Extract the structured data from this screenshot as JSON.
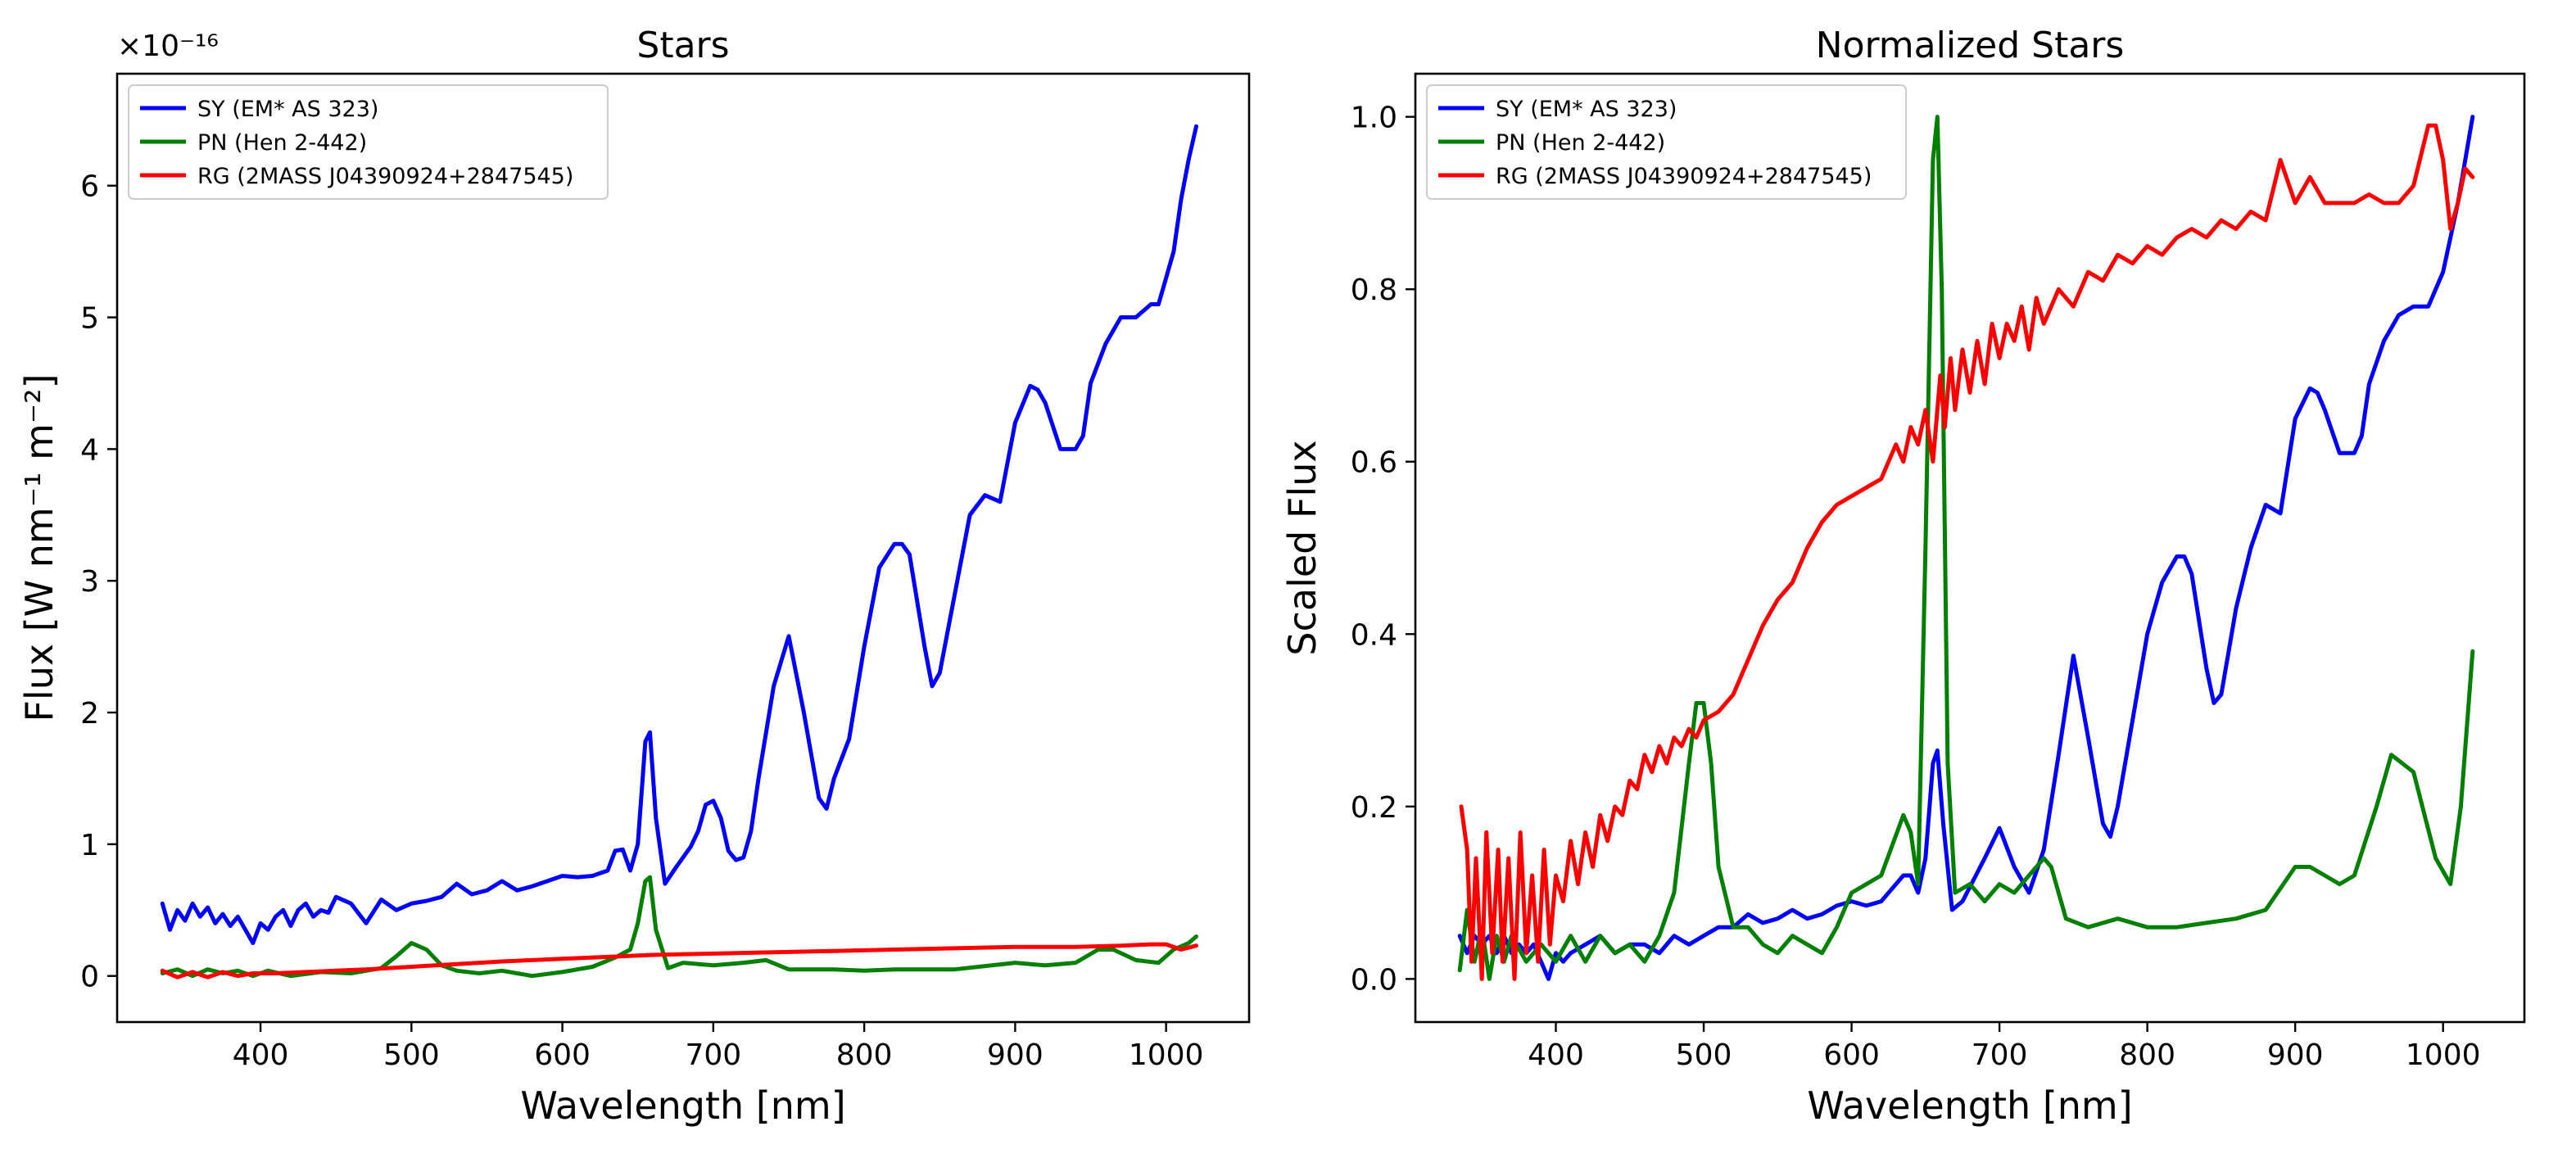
{
  "chart_data": [
    {
      "type": "line",
      "title": "Stars",
      "xlabel": "Wavelength [nm]",
      "ylabel": "Flux [W nm⁻¹ m⁻²]",
      "y_offset_label": "×10⁻¹⁶",
      "xlim": [
        305,
        1055
      ],
      "ylim": [
        -0.35,
        6.85
      ],
      "xticks": [
        400,
        500,
        600,
        700,
        800,
        900,
        1000
      ],
      "xtick_labels": [
        "400",
        "500",
        "600",
        "700",
        "800",
        "900",
        "1000"
      ],
      "yticks": [
        0,
        1,
        2,
        3,
        4,
        5,
        6
      ],
      "ytick_labels": [
        "0",
        "1",
        "2",
        "3",
        "4",
        "5",
        "6"
      ],
      "legend_position": "top-left",
      "series": [
        {
          "name": "SY (EM* AS 323)",
          "color": "#0000ff",
          "x": [
            335,
            340,
            345,
            350,
            355,
            360,
            365,
            370,
            375,
            380,
            385,
            390,
            395,
            400,
            405,
            410,
            415,
            420,
            425,
            430,
            435,
            440,
            445,
            450,
            460,
            470,
            480,
            490,
            500,
            510,
            520,
            530,
            540,
            550,
            560,
            570,
            580,
            590,
            600,
            610,
            620,
            630,
            635,
            640,
            645,
            650,
            655,
            658,
            662,
            668,
            675,
            685,
            690,
            695,
            700,
            705,
            710,
            715,
            720,
            725,
            730,
            740,
            750,
            760,
            770,
            775,
            780,
            790,
            800,
            810,
            820,
            825,
            830,
            840,
            845,
            850,
            860,
            870,
            880,
            890,
            900,
            910,
            915,
            920,
            930,
            940,
            945,
            950,
            960,
            970,
            980,
            990,
            995,
            1000,
            1005,
            1010,
            1015,
            1020
          ],
          "values": [
            0.55,
            0.35,
            0.5,
            0.42,
            0.55,
            0.45,
            0.52,
            0.4,
            0.47,
            0.38,
            0.45,
            0.35,
            0.25,
            0.4,
            0.35,
            0.45,
            0.5,
            0.38,
            0.5,
            0.55,
            0.45,
            0.5,
            0.48,
            0.6,
            0.55,
            0.4,
            0.58,
            0.5,
            0.55,
            0.57,
            0.6,
            0.7,
            0.62,
            0.65,
            0.72,
            0.65,
            0.68,
            0.72,
            0.76,
            0.75,
            0.76,
            0.8,
            0.95,
            0.96,
            0.8,
            1.0,
            1.78,
            1.85,
            1.2,
            0.7,
            0.82,
            0.98,
            1.1,
            1.3,
            1.33,
            1.2,
            0.95,
            0.88,
            0.9,
            1.1,
            1.5,
            2.2,
            2.58,
            2.0,
            1.35,
            1.27,
            1.5,
            1.8,
            2.5,
            3.1,
            3.28,
            3.28,
            3.2,
            2.5,
            2.2,
            2.3,
            2.9,
            3.5,
            3.65,
            3.6,
            4.2,
            4.48,
            4.45,
            4.35,
            4.0,
            4.0,
            4.1,
            4.5,
            4.8,
            5.0,
            5.0,
            5.1,
            5.1,
            5.3,
            5.5,
            5.9,
            6.2,
            6.45
          ]
        },
        {
          "name": "PN (Hen 2-442)",
          "color": "#008000",
          "x": [
            335,
            345,
            355,
            365,
            375,
            385,
            395,
            405,
            420,
            440,
            460,
            470,
            480,
            490,
            500,
            510,
            520,
            530,
            545,
            560,
            580,
            600,
            620,
            635,
            645,
            650,
            655,
            658,
            662,
            670,
            680,
            700,
            720,
            735,
            750,
            780,
            800,
            820,
            860,
            900,
            920,
            940,
            955,
            965,
            980,
            995,
            1005,
            1015,
            1020
          ],
          "values": [
            0.02,
            0.05,
            0.0,
            0.05,
            0.02,
            0.04,
            0.0,
            0.04,
            0.0,
            0.03,
            0.02,
            0.04,
            0.06,
            0.15,
            0.25,
            0.2,
            0.08,
            0.04,
            0.02,
            0.04,
            0.0,
            0.03,
            0.07,
            0.14,
            0.2,
            0.4,
            0.72,
            0.75,
            0.35,
            0.06,
            0.1,
            0.08,
            0.1,
            0.12,
            0.05,
            0.05,
            0.04,
            0.05,
            0.05,
            0.1,
            0.08,
            0.1,
            0.2,
            0.2,
            0.12,
            0.1,
            0.2,
            0.25,
            0.3
          ]
        },
        {
          "name": "RG (2MASS J04390924+2847545)",
          "color": "#ff0000",
          "x": [
            335,
            345,
            355,
            365,
            375,
            385,
            395,
            410,
            430,
            450,
            470,
            500,
            530,
            560,
            600,
            640,
            660,
            700,
            740,
            780,
            820,
            860,
            900,
            940,
            970,
            990,
            1000,
            1010,
            1020
          ],
          "values": [
            0.04,
            -0.01,
            0.03,
            -0.01,
            0.03,
            0.0,
            0.02,
            0.02,
            0.03,
            0.04,
            0.05,
            0.07,
            0.09,
            0.11,
            0.13,
            0.15,
            0.16,
            0.17,
            0.18,
            0.19,
            0.2,
            0.21,
            0.22,
            0.22,
            0.23,
            0.24,
            0.24,
            0.2,
            0.23
          ]
        }
      ]
    },
    {
      "type": "line",
      "title": "Normalized Stars",
      "xlabel": "Wavelength [nm]",
      "ylabel": "Scaled Flux",
      "xlim": [
        305,
        1055
      ],
      "ylim": [
        -0.05,
        1.05
      ],
      "xticks": [
        400,
        500,
        600,
        700,
        800,
        900,
        1000
      ],
      "xtick_labels": [
        "400",
        "500",
        "600",
        "700",
        "800",
        "900",
        "1000"
      ],
      "yticks": [
        0.0,
        0.2,
        0.4,
        0.6,
        0.8,
        1.0
      ],
      "ytick_labels": [
        "0.0",
        "0.2",
        "0.4",
        "0.6",
        "0.8",
        "1.0"
      ],
      "legend_position": "top-left",
      "series": [
        {
          "name": "SY (EM* AS 323)",
          "color": "#0000ff",
          "x": [
            335,
            340,
            345,
            350,
            355,
            360,
            365,
            370,
            375,
            380,
            385,
            390,
            395,
            400,
            405,
            410,
            420,
            430,
            440,
            450,
            460,
            470,
            480,
            490,
            500,
            510,
            520,
            530,
            540,
            550,
            560,
            570,
            580,
            590,
            600,
            610,
            620,
            630,
            635,
            640,
            645,
            650,
            655,
            658,
            662,
            668,
            675,
            690,
            700,
            710,
            720,
            730,
            740,
            750,
            760,
            770,
            775,
            780,
            790,
            800,
            810,
            820,
            825,
            830,
            840,
            845,
            850,
            860,
            870,
            880,
            890,
            900,
            910,
            915,
            920,
            930,
            940,
            945,
            950,
            960,
            970,
            980,
            990,
            1000,
            1010,
            1015,
            1020
          ],
          "values": [
            0.05,
            0.03,
            0.05,
            0.04,
            0.05,
            0.03,
            0.05,
            0.03,
            0.04,
            0.03,
            0.04,
            0.02,
            0.0,
            0.03,
            0.02,
            0.03,
            0.04,
            0.05,
            0.03,
            0.04,
            0.04,
            0.03,
            0.05,
            0.04,
            0.05,
            0.06,
            0.06,
            0.075,
            0.065,
            0.07,
            0.08,
            0.07,
            0.075,
            0.085,
            0.09,
            0.085,
            0.09,
            0.11,
            0.12,
            0.12,
            0.1,
            0.14,
            0.25,
            0.265,
            0.18,
            0.08,
            0.09,
            0.14,
            0.175,
            0.13,
            0.1,
            0.15,
            0.26,
            0.375,
            0.28,
            0.18,
            0.165,
            0.2,
            0.3,
            0.4,
            0.46,
            0.49,
            0.49,
            0.47,
            0.36,
            0.32,
            0.33,
            0.43,
            0.5,
            0.55,
            0.54,
            0.65,
            0.685,
            0.68,
            0.66,
            0.61,
            0.61,
            0.63,
            0.69,
            0.74,
            0.77,
            0.78,
            0.78,
            0.82,
            0.9,
            0.95,
            1.0
          ]
        },
        {
          "name": "PN (Hen 2-442)",
          "color": "#008000",
          "x": [
            335,
            340,
            345,
            350,
            355,
            360,
            365,
            370,
            380,
            390,
            400,
            410,
            420,
            430,
            440,
            450,
            460,
            470,
            480,
            490,
            495,
            500,
            505,
            510,
            520,
            530,
            540,
            550,
            560,
            570,
            580,
            590,
            600,
            620,
            635,
            640,
            645,
            650,
            655,
            658,
            661,
            665,
            670,
            680,
            690,
            700,
            710,
            720,
            730,
            735,
            745,
            760,
            780,
            800,
            820,
            840,
            860,
            880,
            900,
            910,
            920,
            930,
            940,
            955,
            965,
            980,
            995,
            1005,
            1012,
            1020
          ],
          "values": [
            0.01,
            0.08,
            0.02,
            0.06,
            0.0,
            0.05,
            0.02,
            0.05,
            0.02,
            0.04,
            0.02,
            0.05,
            0.02,
            0.05,
            0.03,
            0.04,
            0.02,
            0.05,
            0.1,
            0.25,
            0.32,
            0.32,
            0.25,
            0.13,
            0.06,
            0.06,
            0.04,
            0.03,
            0.05,
            0.04,
            0.03,
            0.06,
            0.1,
            0.12,
            0.19,
            0.17,
            0.11,
            0.5,
            0.95,
            1.0,
            0.8,
            0.25,
            0.1,
            0.11,
            0.09,
            0.11,
            0.1,
            0.12,
            0.14,
            0.13,
            0.07,
            0.06,
            0.07,
            0.06,
            0.06,
            0.065,
            0.07,
            0.08,
            0.13,
            0.13,
            0.12,
            0.11,
            0.12,
            0.2,
            0.26,
            0.24,
            0.14,
            0.11,
            0.2,
            0.38
          ]
        },
        {
          "name": "RG (2MASS J04390924+2847545)",
          "color": "#ff0000",
          "x": [
            336,
            340,
            343,
            346,
            350,
            353,
            357,
            361,
            364,
            368,
            372,
            376,
            380,
            384,
            388,
            392,
            396,
            400,
            405,
            410,
            415,
            420,
            425,
            430,
            435,
            440,
            445,
            450,
            455,
            460,
            465,
            470,
            475,
            480,
            485,
            490,
            495,
            500,
            510,
            520,
            530,
            540,
            550,
            560,
            570,
            580,
            590,
            600,
            610,
            620,
            630,
            635,
            640,
            645,
            650,
            655,
            660,
            663,
            667,
            670,
            675,
            680,
            685,
            690,
            695,
            700,
            705,
            710,
            715,
            720,
            725,
            730,
            740,
            750,
            760,
            770,
            780,
            790,
            800,
            810,
            820,
            830,
            840,
            850,
            860,
            870,
            880,
            890,
            900,
            910,
            920,
            930,
            940,
            950,
            960,
            970,
            980,
            990,
            995,
            1000,
            1005,
            1010,
            1015,
            1020
          ],
          "values": [
            0.2,
            0.15,
            0.02,
            0.14,
            0.0,
            0.17,
            0.03,
            0.15,
            0.02,
            0.14,
            0.0,
            0.17,
            0.03,
            0.12,
            0.02,
            0.15,
            0.04,
            0.12,
            0.09,
            0.16,
            0.11,
            0.17,
            0.13,
            0.19,
            0.16,
            0.2,
            0.19,
            0.23,
            0.22,
            0.26,
            0.24,
            0.27,
            0.25,
            0.28,
            0.27,
            0.29,
            0.28,
            0.3,
            0.31,
            0.33,
            0.37,
            0.41,
            0.44,
            0.46,
            0.5,
            0.53,
            0.55,
            0.56,
            0.57,
            0.58,
            0.62,
            0.6,
            0.64,
            0.62,
            0.66,
            0.6,
            0.7,
            0.64,
            0.72,
            0.66,
            0.73,
            0.68,
            0.74,
            0.69,
            0.76,
            0.72,
            0.76,
            0.74,
            0.78,
            0.73,
            0.79,
            0.76,
            0.8,
            0.78,
            0.82,
            0.81,
            0.84,
            0.83,
            0.85,
            0.84,
            0.86,
            0.87,
            0.86,
            0.88,
            0.87,
            0.89,
            0.88,
            0.95,
            0.9,
            0.93,
            0.9,
            0.9,
            0.9,
            0.91,
            0.9,
            0.9,
            0.92,
            0.99,
            0.99,
            0.95,
            0.87,
            0.9,
            0.94,
            0.93
          ]
        }
      ]
    }
  ]
}
